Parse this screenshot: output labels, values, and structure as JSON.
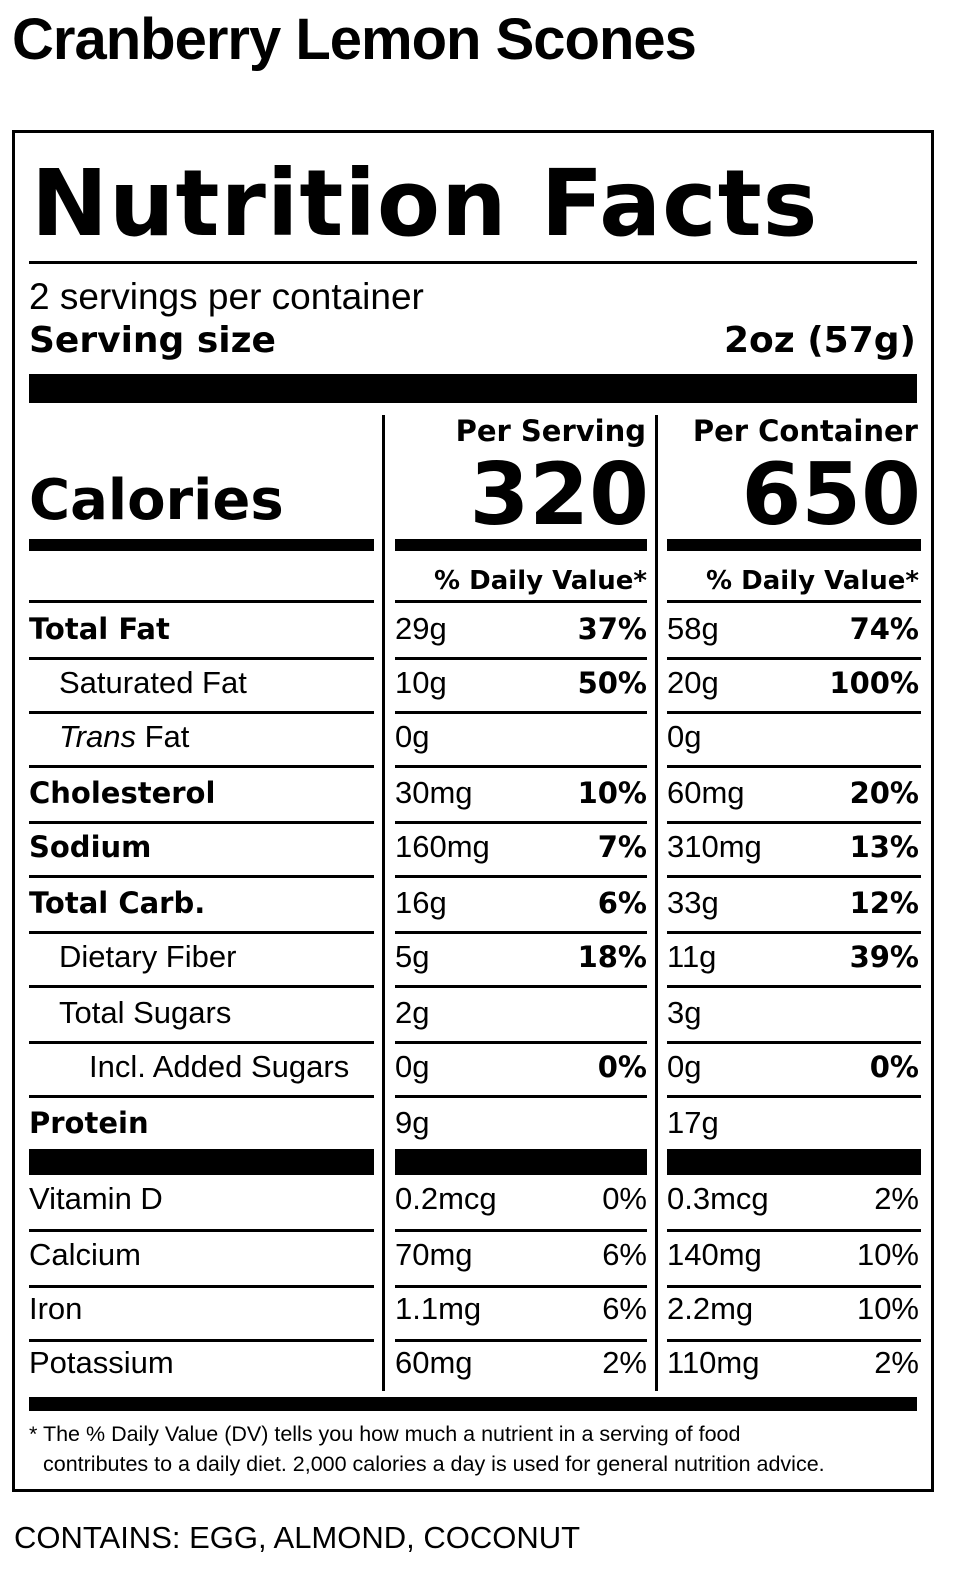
{
  "product_title": "Cranberry Lemon Scones",
  "label": {
    "heading": "Nutrition Facts",
    "servings_per_container": "2 servings per container",
    "serving_size_label": "Serving size",
    "serving_size_value": "2oz (57g)",
    "calories_label": "Calories",
    "col_per_serving": "Per Serving",
    "col_per_container": "Per Container",
    "calories_per_serving": "320",
    "calories_per_container": "650",
    "daily_value_header": "% Daily Value*",
    "nutrients": [
      {
        "name": "Total Fat",
        "style": "bold",
        "serving_amt": "29g",
        "serving_dv": "37%",
        "container_amt": "58g",
        "container_dv": "74%"
      },
      {
        "name": "Saturated Fat",
        "style": "indent1",
        "serving_amt": "10g",
        "serving_dv": "50%",
        "container_amt": "20g",
        "container_dv": "100%"
      },
      {
        "name_italic": "Trans",
        "name_rest": " Fat",
        "style": "indent1",
        "serving_amt": "0g",
        "serving_dv": "",
        "container_amt": "0g",
        "container_dv": ""
      },
      {
        "name": "Cholesterol",
        "style": "bold",
        "serving_amt": "30mg",
        "serving_dv": "10%",
        "container_amt": "60mg",
        "container_dv": "20%"
      },
      {
        "name": "Sodium",
        "style": "bold",
        "serving_amt": "160mg",
        "serving_dv": "7%",
        "container_amt": "310mg",
        "container_dv": "13%"
      },
      {
        "name": "Total Carb.",
        "style": "bold",
        "serving_amt": "16g",
        "serving_dv": "6%",
        "container_amt": "33g",
        "container_dv": "12%"
      },
      {
        "name": "Dietary Fiber",
        "style": "indent1",
        "serving_amt": "5g",
        "serving_dv": "18%",
        "container_amt": "11g",
        "container_dv": "39%"
      },
      {
        "name": "Total Sugars",
        "style": "indent1",
        "serving_amt": "2g",
        "serving_dv": "",
        "container_amt": "3g",
        "container_dv": ""
      },
      {
        "name": "Incl. Added Sugars",
        "style": "indent2",
        "serving_amt": "0g",
        "serving_dv": "0%",
        "container_amt": "0g",
        "container_dv": "0%"
      },
      {
        "name": "Protein",
        "style": "bold",
        "serving_amt": "9g",
        "serving_dv": "",
        "container_amt": "17g",
        "container_dv": ""
      }
    ],
    "vitamins": [
      {
        "name": "Vitamin D",
        "serving_amt": "0.2mcg",
        "serving_dv": "0%",
        "container_amt": "0.3mcg",
        "container_dv": "2%"
      },
      {
        "name": "Calcium",
        "serving_amt": "70mg",
        "serving_dv": "6%",
        "container_amt": "140mg",
        "container_dv": "10%"
      },
      {
        "name": "Iron",
        "serving_amt": "1.1mg",
        "serving_dv": "6%",
        "container_amt": "2.2mg",
        "container_dv": "10%"
      },
      {
        "name": "Potassium",
        "serving_amt": "60mg",
        "serving_dv": "2%",
        "container_amt": "110mg",
        "container_dv": "2%"
      }
    ],
    "footnote_line1": "* The % Daily Value (DV) tells you how much a nutrient in a serving of food",
    "footnote_line2": "contributes to a daily diet. 2,000 calories a day is used for general nutrition advice."
  },
  "contains": "CONTAINS: EGG, ALMOND, COCONUT"
}
